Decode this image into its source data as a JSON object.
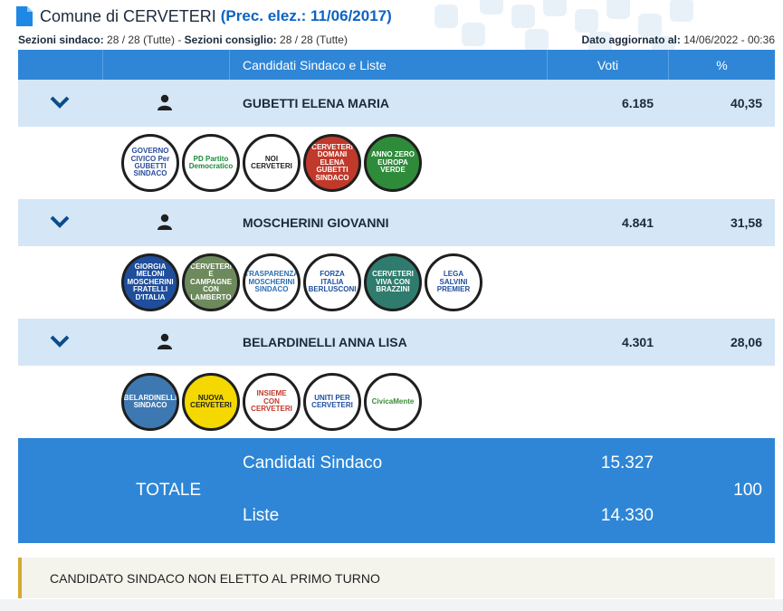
{
  "header": {
    "title": "Comune di CERVETERI",
    "prev_election": "(Prec. elez.: 11/06/2017)",
    "icon": "document-icon"
  },
  "subheader": {
    "sezioni_sindaco_label": "Sezioni sindaco:",
    "sezioni_sindaco_value": "28 / 28 (Tutte)",
    "separator": "-",
    "sezioni_consiglio_label": "Sezioni consiglio:",
    "sezioni_consiglio_value": "28 / 28 (Tutte)",
    "updated_label": "Dato aggiornato al:",
    "updated_value": "14/06/2022 - 00:36"
  },
  "table_head": {
    "candidates_col": "Candidati Sindaco e Liste",
    "votes_col": "Voti",
    "pct_col": "%"
  },
  "candidates": [
    {
      "name": "GUBETTI ELENA MARIA",
      "votes": "6.185",
      "pct": "40,35",
      "lists": [
        {
          "text": "GOVERNO CIVICO Per GUBETTI SINDACO",
          "bg": "#ffffff",
          "fg": "#2a4c9b"
        },
        {
          "text": "PD Partito Democratico",
          "bg": "#ffffff",
          "fg": "#1a8a3a"
        },
        {
          "text": "NOI CERVETERI",
          "bg": "#ffffff",
          "fg": "#1f1f1f"
        },
        {
          "text": "CERVETERI DOMANI ELENA GUBETTI SINDACO",
          "bg": "#c0392b",
          "fg": "#ffffff"
        },
        {
          "text": "ANNO ZERO EUROPA VERDE",
          "bg": "#2e8b3a",
          "fg": "#ffffff"
        }
      ]
    },
    {
      "name": "MOSCHERINI GIOVANNI",
      "votes": "4.841",
      "pct": "31,58",
      "lists": [
        {
          "text": "GIORGIA MELONI MOSCHERINI FRATELLI D'ITALIA",
          "bg": "#1e4e9c",
          "fg": "#ffffff"
        },
        {
          "text": "CERVETERI E CAMPAGNE CON LAMBERTO",
          "bg": "#6d8a5c",
          "fg": "#ffffff"
        },
        {
          "text": "TRASPARENZA MOSCHERINI SINDACO",
          "bg": "#ffffff",
          "fg": "#2a6fb0"
        },
        {
          "text": "FORZA ITALIA BERLUSCONI",
          "bg": "#ffffff",
          "fg": "#1d4e9f"
        },
        {
          "text": "CERVETERI VIVA CON BRAZZINI",
          "bg": "#2f7c6e",
          "fg": "#ffffff"
        },
        {
          "text": "LEGA SALVINI PREMIER",
          "bg": "#ffffff",
          "fg": "#1d4e9f"
        }
      ]
    },
    {
      "name": "BELARDINELLI ANNA LISA",
      "votes": "4.301",
      "pct": "28,06",
      "lists": [
        {
          "text": "BELARDINELLI SINDACO",
          "bg": "#3e78b2",
          "fg": "#ffffff"
        },
        {
          "text": "NUOVA CERVETERI",
          "bg": "#f4d800",
          "fg": "#1f1f1f"
        },
        {
          "text": "INSIEME CON CERVETERI",
          "bg": "#ffffff",
          "fg": "#c0392b"
        },
        {
          "text": "UNITI PER CERVETERI",
          "bg": "#ffffff",
          "fg": "#1d4e9f"
        },
        {
          "text": "CivicaMente",
          "bg": "#ffffff",
          "fg": "#3a8c3a"
        }
      ]
    }
  ],
  "totale": {
    "label": "TOTALE",
    "cand_label": "Candidati Sindaco",
    "cand_votes": "15.327",
    "lists_label": "Liste",
    "lists_votes": "14.330",
    "pct": "100"
  },
  "notice": "CANDIDATO SINDACO NON ELETTO AL PRIMO TURNO",
  "colors": {
    "header_blue": "#2f86d6",
    "row_blue": "#d5e6f6",
    "title_blue": "#0b63c5",
    "notice_border": "#d7a82f"
  }
}
